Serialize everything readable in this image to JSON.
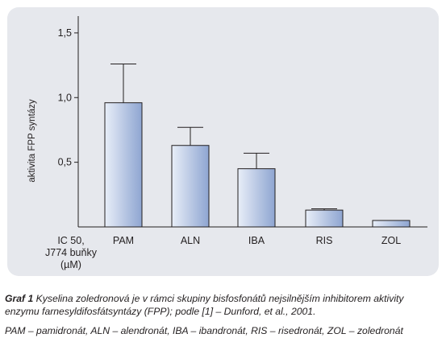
{
  "chart_data": {
    "type": "bar",
    "categories": [
      "PAM",
      "ALN",
      "IBA",
      "RIS",
      "ZOL"
    ],
    "values": [
      0.96,
      0.63,
      0.45,
      0.13,
      0.05
    ],
    "errors": [
      0.3,
      0.14,
      0.12,
      0.01,
      0.0
    ],
    "ylabel": "aktivita FPP syntázy",
    "xlabel_lines": [
      "IC 50,",
      "J774 buňky",
      "(µM)"
    ],
    "yticks": [
      {
        "value": 0.5,
        "label": "0,5"
      },
      {
        "value": 1.0,
        "label": "1,0"
      },
      {
        "value": 1.5,
        "label": "1,5"
      }
    ],
    "ylim": [
      0,
      1.63
    ],
    "grid": false,
    "colors": {
      "bar_light": "#e4eaf5",
      "bar_dark": "#93a9d3",
      "panel": "#e6e8ed"
    }
  },
  "caption": {
    "lead": "Graf 1",
    "text": "Kyselina zoledronová je v rámci skupiny bisfosfonátů nejsilnějším inhibitorem aktivity enzymu farnesyldifosfátsyntázy (FPP); podle [1] – Dunford, et al., 2001."
  },
  "abbreviations": "PAM – pamidronát, ALN – alendronát, IBA – ibandronát, RIS – risedronát, ZOL – zoledronát"
}
